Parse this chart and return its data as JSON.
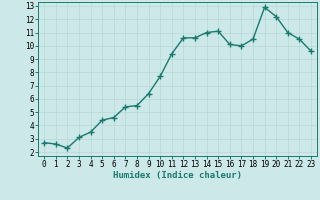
{
  "x": [
    0,
    1,
    2,
    3,
    4,
    5,
    6,
    7,
    8,
    9,
    10,
    11,
    12,
    13,
    14,
    15,
    16,
    17,
    18,
    19,
    20,
    21,
    22,
    23
  ],
  "y": [
    2.7,
    2.6,
    2.3,
    3.1,
    3.5,
    4.4,
    4.6,
    5.4,
    5.5,
    6.4,
    7.7,
    9.4,
    10.6,
    10.6,
    11.0,
    11.1,
    10.1,
    10.0,
    10.5,
    12.9,
    12.2,
    11.0,
    10.5,
    9.6
  ],
  "line_color": "#1a7a6e",
  "marker": "+",
  "marker_size": 4,
  "bg_color": "#cce8e8",
  "grid_color": "#b8d8d8",
  "xlabel": "Humidex (Indice chaleur)",
  "ylim": [
    2,
    13
  ],
  "xlim_min": -0.5,
  "xlim_max": 23.5,
  "yticks": [
    2,
    3,
    4,
    5,
    6,
    7,
    8,
    9,
    10,
    11,
    12,
    13
  ],
  "xticks": [
    0,
    1,
    2,
    3,
    4,
    5,
    6,
    7,
    8,
    9,
    10,
    11,
    12,
    13,
    14,
    15,
    16,
    17,
    18,
    19,
    20,
    21,
    22,
    23
  ],
  "xlabel_fontsize": 6.5,
  "tick_fontsize": 5.5,
  "linewidth": 1.0,
  "marker_linewidth": 1.0
}
